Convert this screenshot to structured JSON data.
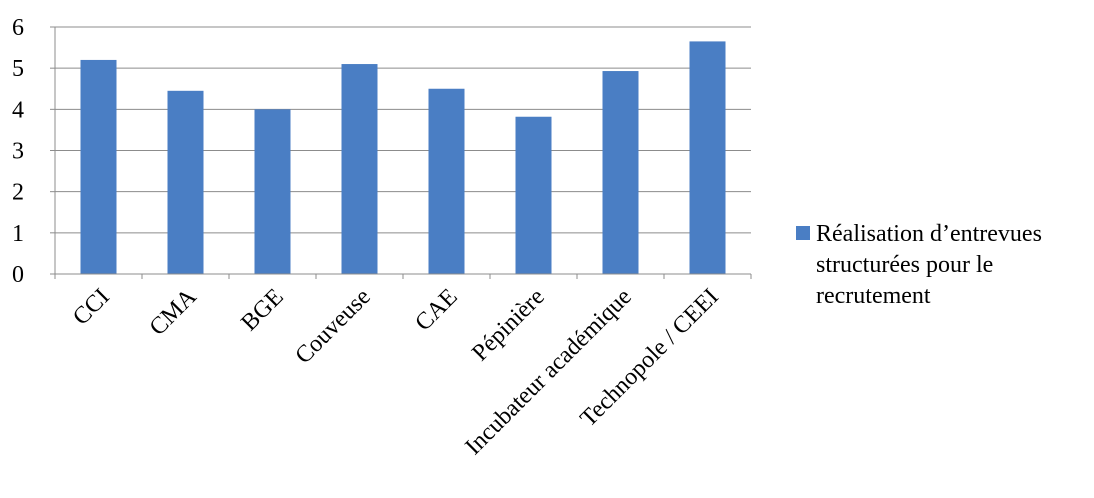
{
  "chart_data": {
    "type": "bar",
    "categories": [
      "CCI",
      "CMA",
      "BGE",
      "Couveuse",
      "CAE",
      "Pépinière",
      "Incubateur académique",
      "Technopole / CEEI"
    ],
    "series": [
      {
        "name": "Réalisation d’entrevues structurées pour le recrutement",
        "values": [
          5.2,
          4.45,
          4.0,
          5.1,
          4.5,
          3.82,
          4.93,
          5.65
        ],
        "color": "#4a7ec4"
      }
    ],
    "ylim": [
      0,
      6
    ],
    "yticks": [
      "0",
      "1",
      "2",
      "3",
      "4",
      "5",
      "6"
    ],
    "grid": true,
    "legend": "right"
  }
}
